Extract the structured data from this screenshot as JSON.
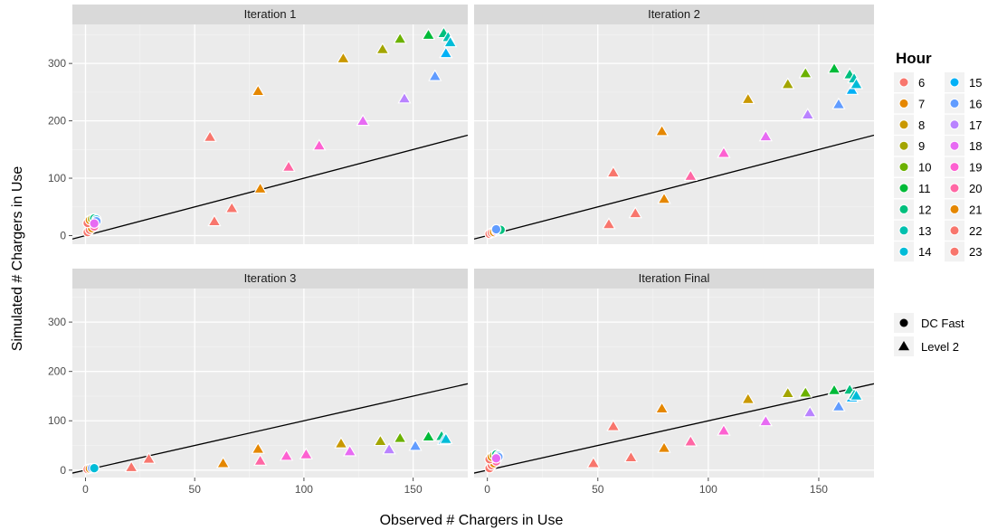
{
  "chart_data": {
    "type": "scatter",
    "facet_layout": "2x2",
    "xlabel": "Observed # Chargers in Use",
    "ylabel": "Simulated # Chargers in Use",
    "xlim": [
      -6,
      175
    ],
    "ylim": [
      -15,
      368
    ],
    "x_ticks": [
      0,
      50,
      100,
      150
    ],
    "y_ticks": [
      0,
      100,
      200,
      300
    ],
    "grid": true,
    "reference_line": {
      "slope": 1,
      "intercept": 0
    },
    "panels": [
      {
        "title": "Iteration 1",
        "level2": [
          {
            "x": 57,
            "y": 171,
            "hour": 6
          },
          {
            "x": 59,
            "y": 24,
            "hour": 23
          },
          {
            "x": 67,
            "y": 47,
            "hour": 22
          },
          {
            "x": 79,
            "y": 251,
            "hour": 7
          },
          {
            "x": 80,
            "y": 81,
            "hour": 21
          },
          {
            "x": 93,
            "y": 119,
            "hour": 20
          },
          {
            "x": 107,
            "y": 156,
            "hour": 19
          },
          {
            "x": 118,
            "y": 308,
            "hour": 8
          },
          {
            "x": 127,
            "y": 199,
            "hour": 18
          },
          {
            "x": 136,
            "y": 324,
            "hour": 9
          },
          {
            "x": 144,
            "y": 342,
            "hour": 10
          },
          {
            "x": 146,
            "y": 238,
            "hour": 17
          },
          {
            "x": 157,
            "y": 349,
            "hour": 11
          },
          {
            "x": 160,
            "y": 277,
            "hour": 16
          },
          {
            "x": 164,
            "y": 352,
            "hour": 12
          },
          {
            "x": 165,
            "y": 317,
            "hour": 15
          },
          {
            "x": 166,
            "y": 345,
            "hour": 13
          },
          {
            "x": 167,
            "y": 336,
            "hour": 14
          }
        ],
        "dcfast": [
          {
            "x": 1,
            "y": 6,
            "hour": 23
          },
          {
            "x": 2,
            "y": 10,
            "hour": 22
          },
          {
            "x": 3,
            "y": 13,
            "hour": 21
          },
          {
            "x": 4,
            "y": 16,
            "hour": 20
          },
          {
            "x": 1,
            "y": 22,
            "hour": 6
          },
          {
            "x": 2,
            "y": 27,
            "hour": 7
          },
          {
            "x": 3,
            "y": 29,
            "hour": 9
          },
          {
            "x": 4,
            "y": 30,
            "hour": 12
          },
          {
            "x": 5,
            "y": 28,
            "hour": 14
          },
          {
            "x": 5,
            "y": 25,
            "hour": 16
          },
          {
            "x": 4,
            "y": 21,
            "hour": 18
          }
        ]
      },
      {
        "title": "Iteration 2",
        "level2": [
          {
            "x": 55,
            "y": 19,
            "hour": 23
          },
          {
            "x": 57,
            "y": 109,
            "hour": 6
          },
          {
            "x": 67,
            "y": 38,
            "hour": 22
          },
          {
            "x": 79,
            "y": 181,
            "hour": 7
          },
          {
            "x": 80,
            "y": 63,
            "hour": 21
          },
          {
            "x": 92,
            "y": 103,
            "hour": 20
          },
          {
            "x": 107,
            "y": 143,
            "hour": 19
          },
          {
            "x": 118,
            "y": 237,
            "hour": 8
          },
          {
            "x": 126,
            "y": 172,
            "hour": 18
          },
          {
            "x": 136,
            "y": 263,
            "hour": 9
          },
          {
            "x": 144,
            "y": 282,
            "hour": 10
          },
          {
            "x": 145,
            "y": 210,
            "hour": 17
          },
          {
            "x": 157,
            "y": 290,
            "hour": 11
          },
          {
            "x": 159,
            "y": 228,
            "hour": 16
          },
          {
            "x": 164,
            "y": 280,
            "hour": 12
          },
          {
            "x": 165,
            "y": 253,
            "hour": 15
          },
          {
            "x": 166,
            "y": 273,
            "hour": 13
          },
          {
            "x": 167,
            "y": 263,
            "hour": 14
          }
        ],
        "dcfast": [
          {
            "x": 1,
            "y": 3,
            "hour": 23
          },
          {
            "x": 2,
            "y": 5,
            "hour": 22
          },
          {
            "x": 3,
            "y": 6,
            "hour": 21
          },
          {
            "x": 4,
            "y": 8,
            "hour": 18
          },
          {
            "x": 5,
            "y": 9,
            "hour": 14
          },
          {
            "x": 6,
            "y": 10,
            "hour": 12
          },
          {
            "x": 4,
            "y": 11,
            "hour": 16
          }
        ]
      },
      {
        "title": "Iteration 3",
        "level2": [
          {
            "x": 21,
            "y": 5,
            "hour": 23
          },
          {
            "x": 29,
            "y": 22,
            "hour": 6
          },
          {
            "x": 63,
            "y": 13,
            "hour": 21
          },
          {
            "x": 79,
            "y": 42,
            "hour": 7
          },
          {
            "x": 80,
            "y": 18,
            "hour": 20
          },
          {
            "x": 92,
            "y": 28,
            "hour": 19
          },
          {
            "x": 101,
            "y": 31,
            "hour": 19
          },
          {
            "x": 117,
            "y": 53,
            "hour": 8
          },
          {
            "x": 121,
            "y": 37,
            "hour": 18
          },
          {
            "x": 135,
            "y": 58,
            "hour": 9
          },
          {
            "x": 139,
            "y": 41,
            "hour": 17
          },
          {
            "x": 144,
            "y": 64,
            "hour": 10
          },
          {
            "x": 151,
            "y": 48,
            "hour": 16
          },
          {
            "x": 157,
            "y": 67,
            "hour": 11
          },
          {
            "x": 163,
            "y": 68,
            "hour": 12
          },
          {
            "x": 164,
            "y": 60,
            "hour": 15
          },
          {
            "x": 165,
            "y": 62,
            "hour": 14
          }
        ],
        "dcfast": [
          {
            "x": 1,
            "y": 2,
            "hour": 23
          },
          {
            "x": 2,
            "y": 3,
            "hour": 21
          },
          {
            "x": 3,
            "y": 4,
            "hour": 16
          },
          {
            "x": 4,
            "y": 4,
            "hour": 14
          }
        ]
      },
      {
        "title": "Iteration Final",
        "level2": [
          {
            "x": 48,
            "y": 13,
            "hour": 23
          },
          {
            "x": 57,
            "y": 88,
            "hour": 6
          },
          {
            "x": 65,
            "y": 25,
            "hour": 22
          },
          {
            "x": 79,
            "y": 124,
            "hour": 7
          },
          {
            "x": 80,
            "y": 44,
            "hour": 21
          },
          {
            "x": 92,
            "y": 57,
            "hour": 20
          },
          {
            "x": 107,
            "y": 79,
            "hour": 19
          },
          {
            "x": 118,
            "y": 143,
            "hour": 8
          },
          {
            "x": 126,
            "y": 98,
            "hour": 18
          },
          {
            "x": 136,
            "y": 155,
            "hour": 9
          },
          {
            "x": 144,
            "y": 156,
            "hour": 10
          },
          {
            "x": 146,
            "y": 116,
            "hour": 17
          },
          {
            "x": 157,
            "y": 161,
            "hour": 11
          },
          {
            "x": 159,
            "y": 128,
            "hour": 16
          },
          {
            "x": 164,
            "y": 162,
            "hour": 12
          },
          {
            "x": 165,
            "y": 146,
            "hour": 15
          },
          {
            "x": 166,
            "y": 152,
            "hour": 13
          },
          {
            "x": 167,
            "y": 150,
            "hour": 14
          }
        ],
        "dcfast": [
          {
            "x": 1,
            "y": 4,
            "hour": 23
          },
          {
            "x": 2,
            "y": 10,
            "hour": 22
          },
          {
            "x": 3,
            "y": 14,
            "hour": 21
          },
          {
            "x": 4,
            "y": 18,
            "hour": 20
          },
          {
            "x": 1,
            "y": 22,
            "hour": 6
          },
          {
            "x": 2,
            "y": 27,
            "hour": 7
          },
          {
            "x": 3,
            "y": 30,
            "hour": 9
          },
          {
            "x": 4,
            "y": 32,
            "hour": 12
          },
          {
            "x": 5,
            "y": 30,
            "hour": 14
          },
          {
            "x": 5,
            "y": 27,
            "hour": 16
          },
          {
            "x": 4,
            "y": 24,
            "hour": 18
          }
        ]
      }
    ],
    "legend": {
      "position": "right",
      "title": "Hour",
      "hours": [
        {
          "label": "6",
          "color": "#F8766D"
        },
        {
          "label": "7",
          "color": "#E58700"
        },
        {
          "label": "8",
          "color": "#C99800"
        },
        {
          "label": "9",
          "color": "#A3A500"
        },
        {
          "label": "10",
          "color": "#6BB100"
        },
        {
          "label": "11",
          "color": "#00BA38"
        },
        {
          "label": "12",
          "color": "#00BF7D"
        },
        {
          "label": "13",
          "color": "#00C0AF"
        },
        {
          "label": "14",
          "color": "#00BCD8"
        },
        {
          "label": "15",
          "color": "#00B0F6"
        },
        {
          "label": "16",
          "color": "#619CFF"
        },
        {
          "label": "17",
          "color": "#B983FF"
        },
        {
          "label": "18",
          "color": "#E76BF3"
        },
        {
          "label": "19",
          "color": "#FD61D1"
        },
        {
          "label": "20",
          "color": "#FF67A4"
        },
        {
          "label": "21",
          "color": "#E58700"
        },
        {
          "label": "22",
          "color": "#F8766D"
        },
        {
          "label": "23",
          "color": "#F8766D"
        }
      ],
      "shapes": [
        {
          "label": "DC Fast",
          "shape": "circle"
        },
        {
          "label": "Level 2",
          "shape": "triangle"
        }
      ]
    }
  }
}
